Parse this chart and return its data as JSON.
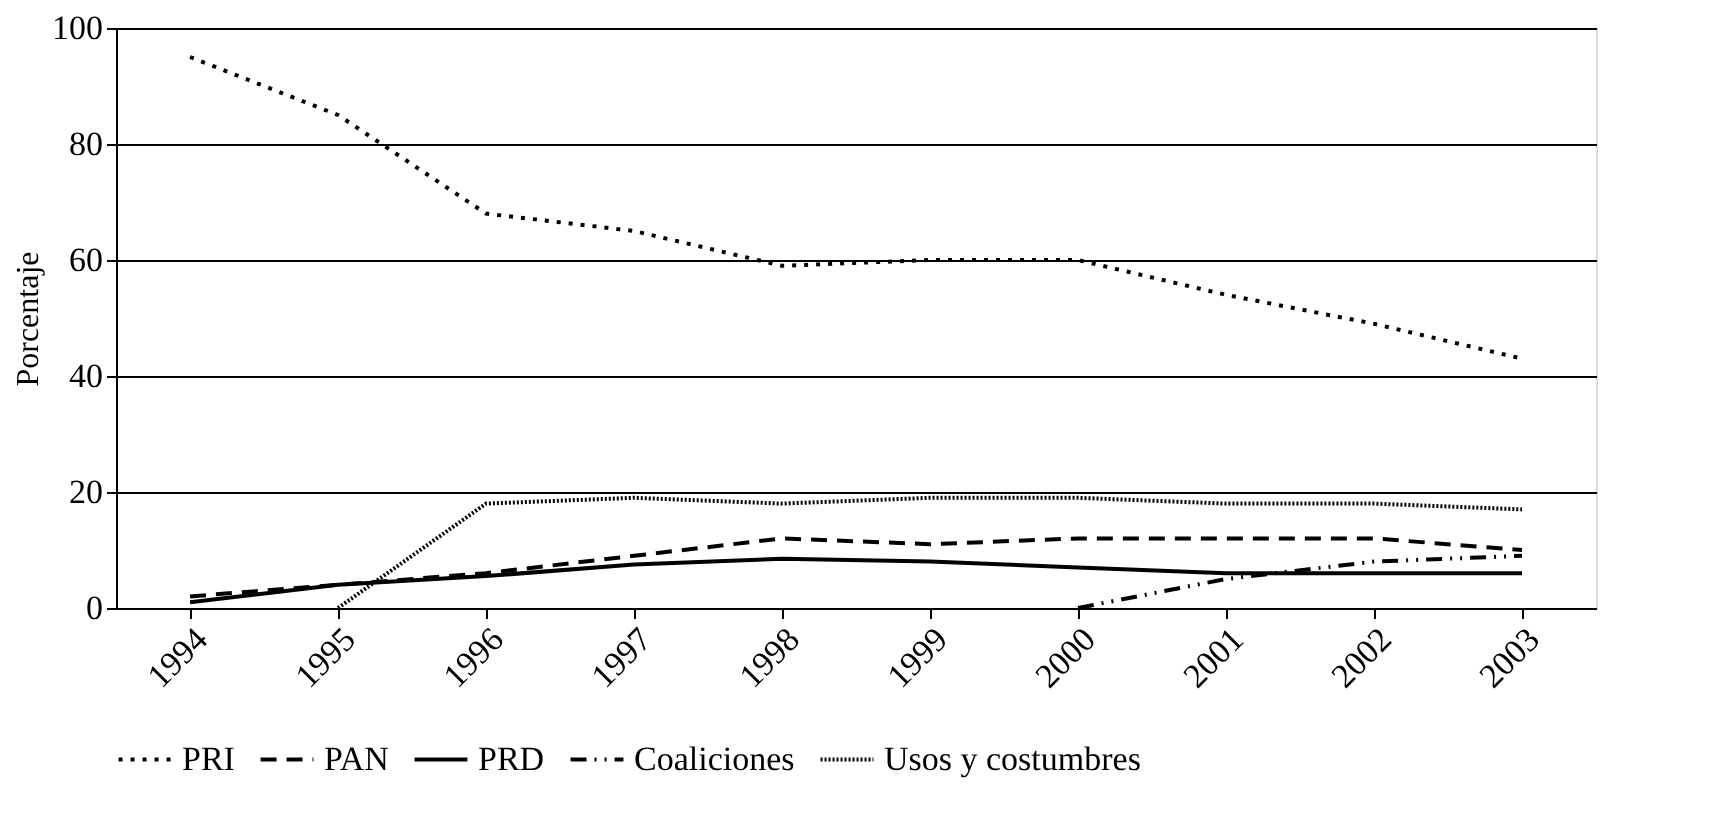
{
  "chart_data": {
    "type": "line",
    "ylabel": "Porcentaje",
    "categories": [
      "1994",
      "1995",
      "1996",
      "1997",
      "1998",
      "1999",
      "2000",
      "2001",
      "2002",
      "2003"
    ],
    "series": [
      {
        "name": "PRI",
        "color": "#000000",
        "line_style": "dotted",
        "values": [
          95,
          85,
          68,
          65,
          59,
          60,
          60,
          54,
          49,
          43
        ]
      },
      {
        "name": "PAN",
        "color": "#000000",
        "line_style": "dashed",
        "values": [
          2,
          4,
          6,
          9,
          12,
          11,
          12,
          12,
          12,
          10
        ]
      },
      {
        "name": "PRD",
        "color": "#000000",
        "line_style": "solid",
        "values": [
          1,
          4,
          5.5,
          7.5,
          8.5,
          8,
          7,
          6,
          6,
          6
        ]
      },
      {
        "name": "Coaliciones",
        "color": "#000000",
        "line_style": "dashdot",
        "values": [
          null,
          null,
          null,
          null,
          null,
          null,
          0,
          5,
          8,
          9
        ]
      },
      {
        "name": "Usos y costumbres",
        "color": "#000000",
        "line_style": "densely dotted",
        "values": [
          null,
          0,
          18,
          19,
          18,
          19,
          19,
          18,
          18,
          17
        ]
      }
    ],
    "ylim": [
      0,
      100
    ],
    "yticks": [
      0,
      20,
      40,
      60,
      80,
      100
    ],
    "grid": "y",
    "legend": "bottom",
    "marker": "none"
  }
}
